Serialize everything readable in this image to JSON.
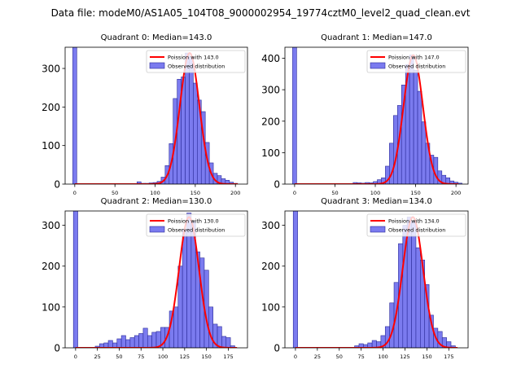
{
  "figure_title": "Data file: modeM0/AS1A05_104T08_9000002954_19774cztM0_level2_quad_clean.evt",
  "colors": {
    "bar_fill": "#7b7bef",
    "bar_edge": "#2b2b9a",
    "fit_line": "#ff0000",
    "axis": "#000000",
    "background": "#ffffff"
  },
  "chart_data": [
    {
      "type": "bar",
      "title": "Quadrant 0: Median=143.0",
      "xlim": [
        -12,
        215
      ],
      "ylim": [
        0,
        355
      ],
      "xticks": [
        0,
        50,
        100,
        150,
        200
      ],
      "yticks": [
        0,
        100,
        200,
        300
      ],
      "bin_width": 5,
      "legend_location": "top-right",
      "legend": [
        "Poission with 143.0",
        "Observed distribution"
      ],
      "fit": {
        "label": "Poission with 143.0",
        "mean": 143.0,
        "peak": 340,
        "sigma": 12
      },
      "bins": [
        {
          "x": 0,
          "y": 355
        },
        {
          "x": 80,
          "y": 6
        },
        {
          "x": 85,
          "y": 2
        },
        {
          "x": 90,
          "y": 2
        },
        {
          "x": 95,
          "y": 3
        },
        {
          "x": 100,
          "y": 4
        },
        {
          "x": 105,
          "y": 7
        },
        {
          "x": 110,
          "y": 18
        },
        {
          "x": 115,
          "y": 48
        },
        {
          "x": 120,
          "y": 105
        },
        {
          "x": 125,
          "y": 222
        },
        {
          "x": 130,
          "y": 272
        },
        {
          "x": 135,
          "y": 278
        },
        {
          "x": 140,
          "y": 340
        },
        {
          "x": 145,
          "y": 330
        },
        {
          "x": 150,
          "y": 262
        },
        {
          "x": 155,
          "y": 218
        },
        {
          "x": 160,
          "y": 188
        },
        {
          "x": 165,
          "y": 108
        },
        {
          "x": 170,
          "y": 55
        },
        {
          "x": 175,
          "y": 28
        },
        {
          "x": 180,
          "y": 22
        },
        {
          "x": 185,
          "y": 14
        },
        {
          "x": 190,
          "y": 10
        },
        {
          "x": 195,
          "y": 5
        },
        {
          "x": 200,
          "y": 2
        }
      ]
    },
    {
      "type": "bar",
      "title": "Quadrant 1: Median=147.0",
      "xlim": [
        -12,
        215
      ],
      "ylim": [
        0,
        435
      ],
      "xticks": [
        0,
        50,
        100,
        150,
        200
      ],
      "yticks": [
        0,
        100,
        200,
        300,
        400
      ],
      "bin_width": 5,
      "legend_location": "top-right",
      "legend": [
        "Poission with 147.0",
        "Observed distribution"
      ],
      "fit": {
        "label": "Poission with 147.0",
        "mean": 147.0,
        "peak": 410,
        "sigma": 12
      },
      "bins": [
        {
          "x": 0,
          "y": 435
        },
        {
          "x": 75,
          "y": 5
        },
        {
          "x": 80,
          "y": 4
        },
        {
          "x": 85,
          "y": 3
        },
        {
          "x": 90,
          "y": 5
        },
        {
          "x": 95,
          "y": 4
        },
        {
          "x": 100,
          "y": 8
        },
        {
          "x": 105,
          "y": 14
        },
        {
          "x": 110,
          "y": 20
        },
        {
          "x": 115,
          "y": 57
        },
        {
          "x": 120,
          "y": 130
        },
        {
          "x": 125,
          "y": 218
        },
        {
          "x": 130,
          "y": 250
        },
        {
          "x": 135,
          "y": 315
        },
        {
          "x": 140,
          "y": 380
        },
        {
          "x": 145,
          "y": 410
        },
        {
          "x": 150,
          "y": 362
        },
        {
          "x": 155,
          "y": 295
        },
        {
          "x": 160,
          "y": 198
        },
        {
          "x": 165,
          "y": 130
        },
        {
          "x": 170,
          "y": 92
        },
        {
          "x": 175,
          "y": 85
        },
        {
          "x": 180,
          "y": 42
        },
        {
          "x": 185,
          "y": 28
        },
        {
          "x": 190,
          "y": 20
        },
        {
          "x": 195,
          "y": 10
        },
        {
          "x": 200,
          "y": 6
        },
        {
          "x": 205,
          "y": 3
        }
      ]
    },
    {
      "type": "bar",
      "title": "Quadrant 2: Median=130.0",
      "xlim": [
        -12,
        197
      ],
      "ylim": [
        0,
        335
      ],
      "xticks": [
        0,
        25,
        50,
        75,
        100,
        125,
        150,
        175
      ],
      "yticks": [
        0,
        100,
        200,
        300
      ],
      "bin_width": 5,
      "legend_location": "top-right",
      "legend": [
        "Poission with 130.0",
        "Observed distribution"
      ],
      "fit": {
        "label": "Poission with 130.0",
        "mean": 130.0,
        "peak": 320,
        "sigma": 11.4
      },
      "bins": [
        {
          "x": 0,
          "y": 335
        },
        {
          "x": 25,
          "y": 4
        },
        {
          "x": 30,
          "y": 10
        },
        {
          "x": 35,
          "y": 12
        },
        {
          "x": 40,
          "y": 18
        },
        {
          "x": 45,
          "y": 12
        },
        {
          "x": 50,
          "y": 22
        },
        {
          "x": 55,
          "y": 30
        },
        {
          "x": 60,
          "y": 20
        },
        {
          "x": 65,
          "y": 25
        },
        {
          "x": 70,
          "y": 30
        },
        {
          "x": 75,
          "y": 35
        },
        {
          "x": 80,
          "y": 48
        },
        {
          "x": 85,
          "y": 30
        },
        {
          "x": 90,
          "y": 38
        },
        {
          "x": 95,
          "y": 40
        },
        {
          "x": 100,
          "y": 50
        },
        {
          "x": 105,
          "y": 50
        },
        {
          "x": 110,
          "y": 90
        },
        {
          "x": 115,
          "y": 100
        },
        {
          "x": 120,
          "y": 200
        },
        {
          "x": 125,
          "y": 290
        },
        {
          "x": 130,
          "y": 330
        },
        {
          "x": 135,
          "y": 310
        },
        {
          "x": 140,
          "y": 235
        },
        {
          "x": 145,
          "y": 220
        },
        {
          "x": 150,
          "y": 190
        },
        {
          "x": 155,
          "y": 100
        },
        {
          "x": 160,
          "y": 58
        },
        {
          "x": 165,
          "y": 52
        },
        {
          "x": 170,
          "y": 28
        },
        {
          "x": 175,
          "y": 25
        },
        {
          "x": 180,
          "y": 5
        }
      ]
    },
    {
      "type": "bar",
      "title": "Quadrant 3: Median=134.0",
      "xlim": [
        -12,
        197
      ],
      "ylim": [
        0,
        335
      ],
      "xticks": [
        0,
        25,
        50,
        75,
        100,
        125,
        150,
        175
      ],
      "yticks": [
        0,
        100,
        200,
        300
      ],
      "bin_width": 5,
      "legend_location": "top-right",
      "legend": [
        "Poission with 134.0",
        "Observed distribution"
      ],
      "fit": {
        "label": "Poission with 134.0",
        "mean": 134.0,
        "peak": 320,
        "sigma": 11.6
      },
      "bins": [
        {
          "x": 0,
          "y": 335
        },
        {
          "x": 70,
          "y": 5
        },
        {
          "x": 75,
          "y": 10
        },
        {
          "x": 80,
          "y": 8
        },
        {
          "x": 85,
          "y": 12
        },
        {
          "x": 90,
          "y": 18
        },
        {
          "x": 95,
          "y": 15
        },
        {
          "x": 100,
          "y": 30
        },
        {
          "x": 105,
          "y": 52
        },
        {
          "x": 110,
          "y": 110
        },
        {
          "x": 115,
          "y": 160
        },
        {
          "x": 120,
          "y": 255
        },
        {
          "x": 125,
          "y": 300
        },
        {
          "x": 130,
          "y": 320
        },
        {
          "x": 135,
          "y": 310
        },
        {
          "x": 140,
          "y": 245
        },
        {
          "x": 145,
          "y": 215
        },
        {
          "x": 150,
          "y": 155
        },
        {
          "x": 155,
          "y": 80
        },
        {
          "x": 160,
          "y": 48
        },
        {
          "x": 165,
          "y": 40
        },
        {
          "x": 170,
          "y": 25
        },
        {
          "x": 175,
          "y": 15
        },
        {
          "x": 180,
          "y": 5
        }
      ]
    }
  ]
}
